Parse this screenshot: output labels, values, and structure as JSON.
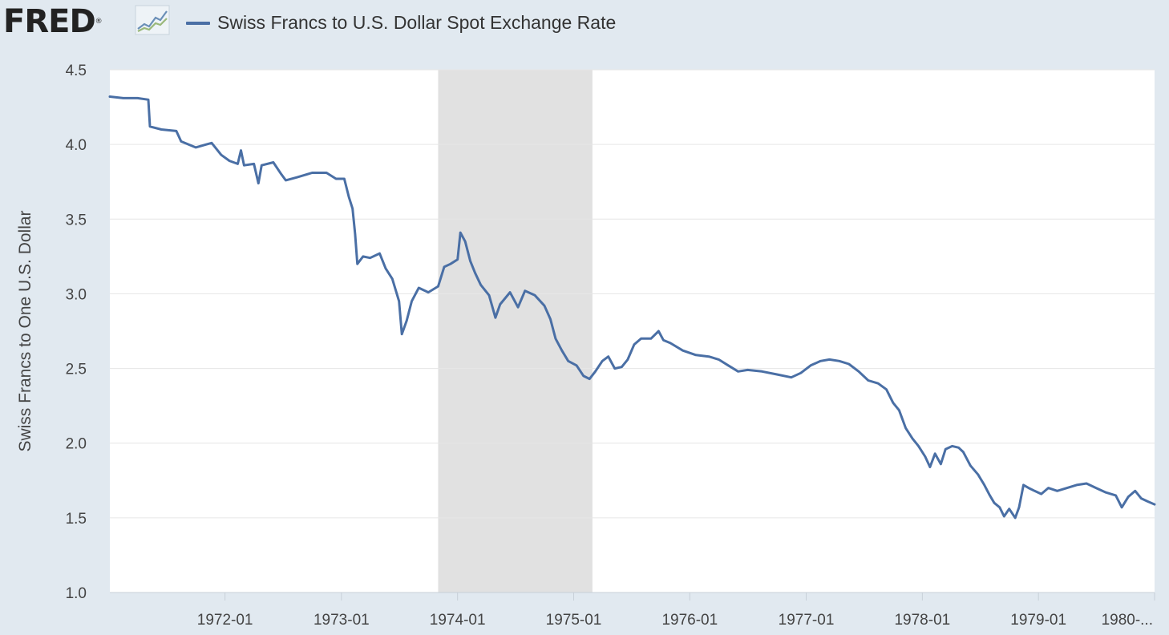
{
  "header": {
    "logo_text": "FRED",
    "logo_mark": "®",
    "logo_icon": "trend-graph-icon"
  },
  "chart_data": {
    "type": "line",
    "ylabel": "Swiss Francs to One U.S. Dollar",
    "ylim": [
      1.0,
      4.5
    ],
    "yticks": [
      1.0,
      1.5,
      2.0,
      2.5,
      3.0,
      3.5,
      4.0,
      4.5
    ],
    "ytick_labels": [
      "1.0",
      "1.5",
      "2.0",
      "2.5",
      "3.0",
      "3.5",
      "4.0",
      "4.5"
    ],
    "xlim": [
      "1971-01-04",
      "1980-01-01"
    ],
    "xticks": [
      "1972-01-01",
      "1973-01-01",
      "1974-01-01",
      "1975-01-01",
      "1976-01-01",
      "1977-01-01",
      "1978-01-01",
      "1979-01-01",
      "1980-01-01"
    ],
    "xtick_labels": [
      "1972-01",
      "1973-01",
      "1974-01",
      "1975-01",
      "1976-01",
      "1977-01",
      "1978-01",
      "1979-01",
      "1980-..."
    ],
    "grid": true,
    "legend_position": "top-left",
    "recessions": [
      {
        "start": "1973-11-01",
        "end": "1975-03-01"
      }
    ],
    "series": [
      {
        "name": "Swiss Francs to U.S. Dollar Spot Exchange Rate",
        "color": "#4a6fa5",
        "points": [
          [
            "1971-01-04",
            4.32
          ],
          [
            "1971-02-15",
            4.31
          ],
          [
            "1971-04-01",
            4.31
          ],
          [
            "1971-05-05",
            4.3
          ],
          [
            "1971-05-10",
            4.12
          ],
          [
            "1971-06-15",
            4.1
          ],
          [
            "1971-08-01",
            4.09
          ],
          [
            "1971-08-16",
            4.02
          ],
          [
            "1971-10-01",
            3.98
          ],
          [
            "1971-11-20",
            4.01
          ],
          [
            "1971-12-20",
            3.93
          ],
          [
            "1972-01-15",
            3.89
          ],
          [
            "1972-02-10",
            3.87
          ],
          [
            "1972-02-20",
            3.96
          ],
          [
            "1972-03-01",
            3.86
          ],
          [
            "1972-04-01",
            3.87
          ],
          [
            "1972-04-15",
            3.74
          ],
          [
            "1972-04-25",
            3.86
          ],
          [
            "1972-06-01",
            3.88
          ],
          [
            "1972-06-26",
            3.8
          ],
          [
            "1972-07-10",
            3.76
          ],
          [
            "1972-08-15",
            3.78
          ],
          [
            "1972-10-01",
            3.81
          ],
          [
            "1972-11-15",
            3.81
          ],
          [
            "1972-12-15",
            3.77
          ],
          [
            "1973-01-10",
            3.77
          ],
          [
            "1973-01-24",
            3.65
          ],
          [
            "1973-02-05",
            3.57
          ],
          [
            "1973-02-13",
            3.4
          ],
          [
            "1973-02-20",
            3.2
          ],
          [
            "1973-03-10",
            3.25
          ],
          [
            "1973-04-01",
            3.24
          ],
          [
            "1973-05-01",
            3.27
          ],
          [
            "1973-05-20",
            3.17
          ],
          [
            "1973-06-10",
            3.1
          ],
          [
            "1973-07-01",
            2.95
          ],
          [
            "1973-07-10",
            2.73
          ],
          [
            "1973-07-25",
            2.82
          ],
          [
            "1973-08-10",
            2.95
          ],
          [
            "1973-09-01",
            3.04
          ],
          [
            "1973-10-01",
            3.01
          ],
          [
            "1973-11-01",
            3.05
          ],
          [
            "1973-11-20",
            3.18
          ],
          [
            "1973-12-10",
            3.2
          ],
          [
            "1974-01-01",
            3.23
          ],
          [
            "1974-01-10",
            3.41
          ],
          [
            "1974-01-25",
            3.35
          ],
          [
            "1974-02-10",
            3.22
          ],
          [
            "1974-02-25",
            3.14
          ],
          [
            "1974-03-15",
            3.06
          ],
          [
            "1974-04-10",
            2.99
          ],
          [
            "1974-04-30",
            2.84
          ],
          [
            "1974-05-15",
            2.93
          ],
          [
            "1974-06-15",
            3.01
          ],
          [
            "1974-07-10",
            2.91
          ],
          [
            "1974-08-01",
            3.02
          ],
          [
            "1974-09-01",
            2.99
          ],
          [
            "1974-10-01",
            2.92
          ],
          [
            "1974-10-20",
            2.83
          ],
          [
            "1974-11-05",
            2.7
          ],
          [
            "1974-11-25",
            2.62
          ],
          [
            "1974-12-15",
            2.55
          ],
          [
            "1975-01-10",
            2.52
          ],
          [
            "1975-02-01",
            2.45
          ],
          [
            "1975-02-20",
            2.43
          ],
          [
            "1975-03-10",
            2.48
          ],
          [
            "1975-04-01",
            2.55
          ],
          [
            "1975-04-20",
            2.58
          ],
          [
            "1975-05-10",
            2.5
          ],
          [
            "1975-06-01",
            2.51
          ],
          [
            "1975-06-20",
            2.56
          ],
          [
            "1975-07-10",
            2.66
          ],
          [
            "1975-08-01",
            2.7
          ],
          [
            "1975-09-01",
            2.7
          ],
          [
            "1975-09-25",
            2.75
          ],
          [
            "1975-10-10",
            2.69
          ],
          [
            "1975-11-01",
            2.67
          ],
          [
            "1975-12-10",
            2.62
          ],
          [
            "1976-01-20",
            2.59
          ],
          [
            "1976-03-01",
            2.58
          ],
          [
            "1976-04-01",
            2.56
          ],
          [
            "1976-05-01",
            2.52
          ],
          [
            "1976-06-01",
            2.48
          ],
          [
            "1976-07-01",
            2.49
          ],
          [
            "1976-08-15",
            2.48
          ],
          [
            "1976-10-01",
            2.46
          ],
          [
            "1976-11-15",
            2.44
          ],
          [
            "1976-12-15",
            2.47
          ],
          [
            "1977-01-15",
            2.52
          ],
          [
            "1977-02-15",
            2.55
          ],
          [
            "1977-03-15",
            2.56
          ],
          [
            "1977-04-15",
            2.55
          ],
          [
            "1977-05-15",
            2.53
          ],
          [
            "1977-06-15",
            2.48
          ],
          [
            "1977-07-15",
            2.42
          ],
          [
            "1977-08-15",
            2.4
          ],
          [
            "1977-09-10",
            2.36
          ],
          [
            "1977-10-01",
            2.27
          ],
          [
            "1977-10-20",
            2.22
          ],
          [
            "1977-11-10",
            2.1
          ],
          [
            "1977-12-01",
            2.03
          ],
          [
            "1977-12-20",
            1.98
          ],
          [
            "1978-01-10",
            1.91
          ],
          [
            "1978-01-25",
            1.84
          ],
          [
            "1978-02-10",
            1.93
          ],
          [
            "1978-02-28",
            1.86
          ],
          [
            "1978-03-15",
            1.96
          ],
          [
            "1978-04-05",
            1.98
          ],
          [
            "1978-04-25",
            1.97
          ],
          [
            "1978-05-10",
            1.94
          ],
          [
            "1978-06-01",
            1.85
          ],
          [
            "1978-06-25",
            1.79
          ],
          [
            "1978-07-15",
            1.72
          ],
          [
            "1978-08-01",
            1.65
          ],
          [
            "1978-08-15",
            1.6
          ],
          [
            "1978-09-01",
            1.57
          ],
          [
            "1978-09-15",
            1.51
          ],
          [
            "1978-10-01",
            1.56
          ],
          [
            "1978-10-20",
            1.5
          ],
          [
            "1978-11-01",
            1.57
          ],
          [
            "1978-11-15",
            1.72
          ],
          [
            "1978-12-01",
            1.7
          ],
          [
            "1978-12-20",
            1.68
          ],
          [
            "1979-01-10",
            1.66
          ],
          [
            "1979-02-01",
            1.7
          ],
          [
            "1979-03-01",
            1.68
          ],
          [
            "1979-04-01",
            1.7
          ],
          [
            "1979-05-01",
            1.72
          ],
          [
            "1979-06-01",
            1.73
          ],
          [
            "1979-07-01",
            1.7
          ],
          [
            "1979-08-01",
            1.67
          ],
          [
            "1979-09-01",
            1.65
          ],
          [
            "1979-09-20",
            1.57
          ],
          [
            "1979-10-10",
            1.64
          ],
          [
            "1979-11-01",
            1.68
          ],
          [
            "1979-11-20",
            1.63
          ],
          [
            "1979-12-10",
            1.61
          ],
          [
            "1980-01-01",
            1.59
          ]
        ]
      }
    ]
  }
}
